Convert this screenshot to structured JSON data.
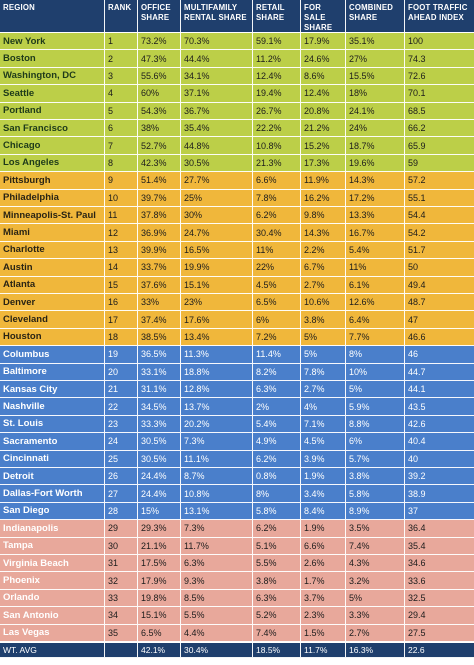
{
  "headers": [
    "REGION",
    "RANK",
    "OFFICE SHARE",
    "MULTIFAMILY RENTAL SHARE",
    "RETAIL SHARE",
    "FOR SALE SHARE",
    "COMBINED SHARE",
    "FOOT TRAFFIC AHEAD INDEX"
  ],
  "bands": {
    "green": "#bccf48",
    "yellow": "#f0b73b",
    "blue": "#4a7fcb",
    "pink": "#e8a89b",
    "header": "#1f3f6d"
  },
  "rows": [
    {
      "region": "New York",
      "rank": "1",
      "office": "73.2%",
      "multifamily": "70.3%",
      "retail": "59.1%",
      "for_sale": "17.9%",
      "combined": "35.1%",
      "foot_traffic": "100",
      "band": "green"
    },
    {
      "region": "Boston",
      "rank": "2",
      "office": "47.3%",
      "multifamily": "44.4%",
      "retail": "11.2%",
      "for_sale": "24.6%",
      "combined": "27%",
      "foot_traffic": "74.3",
      "band": "green"
    },
    {
      "region": "Washington, DC",
      "rank": "3",
      "office": "55.6%",
      "multifamily": "34.1%",
      "retail": "12.4%",
      "for_sale": "8.6%",
      "combined": "15.5%",
      "foot_traffic": "72.6",
      "band": "green"
    },
    {
      "region": "Seattle",
      "rank": "4",
      "office": "60%",
      "multifamily": "37.1%",
      "retail": "19.4%",
      "for_sale": "12.4%",
      "combined": "18%",
      "foot_traffic": "70.1",
      "band": "green"
    },
    {
      "region": "Portland",
      "rank": "5",
      "office": "54.3%",
      "multifamily": "36.7%",
      "retail": "26.7%",
      "for_sale": "20.8%",
      "combined": "24.1%",
      "foot_traffic": "68.5",
      "band": "green"
    },
    {
      "region": "San Francisco",
      "rank": "6",
      "office": "38%",
      "multifamily": "35.4%",
      "retail": "22.2%",
      "for_sale": "21.2%",
      "combined": "24%",
      "foot_traffic": "66.2",
      "band": "green"
    },
    {
      "region": "Chicago",
      "rank": "7",
      "office": "52.7%",
      "multifamily": "44.8%",
      "retail": "10.8%",
      "for_sale": "15.2%",
      "combined": "18.7%",
      "foot_traffic": "65.9",
      "band": "green"
    },
    {
      "region": "Los Angeles",
      "rank": "8",
      "office": "42.3%",
      "multifamily": "30.5%",
      "retail": "21.3%",
      "for_sale": "17.3%",
      "combined": "19.6%",
      "foot_traffic": "59",
      "band": "green"
    },
    {
      "region": "Pittsburgh",
      "rank": "9",
      "office": "51.4%",
      "multifamily": "27.7%",
      "retail": "6.6%",
      "for_sale": "11.9%",
      "combined": "14.3%",
      "foot_traffic": "57.2",
      "band": "yellow"
    },
    {
      "region": "Philadelphia",
      "rank": "10",
      "office": "39.7%",
      "multifamily": "25%",
      "retail": "7.8%",
      "for_sale": "16.2%",
      "combined": "17.2%",
      "foot_traffic": "55.1",
      "band": "yellow"
    },
    {
      "region": "Minneapolis-St. Paul",
      "rank": "11",
      "office": "37.8%",
      "multifamily": "30%",
      "retail": "6.2%",
      "for_sale": "9.8%",
      "combined": "13.3%",
      "foot_traffic": "54.4",
      "band": "yellow"
    },
    {
      "region": "Miami",
      "rank": "12",
      "office": "36.9%",
      "multifamily": "24.7%",
      "retail": "30.4%",
      "for_sale": "14.3%",
      "combined": "16.7%",
      "foot_traffic": "54.2",
      "band": "yellow"
    },
    {
      "region": "Charlotte",
      "rank": "13",
      "office": "39.9%",
      "multifamily": "16.5%",
      "retail": "11%",
      "for_sale": "2.2%",
      "combined": "5.4%",
      "foot_traffic": "51.7",
      "band": "yellow"
    },
    {
      "region": "Austin",
      "rank": "14",
      "office": "33.7%",
      "multifamily": "19.9%",
      "retail": "22%",
      "for_sale": "6.7%",
      "combined": "11%",
      "foot_traffic": "50",
      "band": "yellow"
    },
    {
      "region": "Atlanta",
      "rank": "15",
      "office": "37.6%",
      "multifamily": "15.1%",
      "retail": "4.5%",
      "for_sale": "2.7%",
      "combined": "6.1%",
      "foot_traffic": "49.4",
      "band": "yellow"
    },
    {
      "region": "Denver",
      "rank": "16",
      "office": "33%",
      "multifamily": "23%",
      "retail": "6.5%",
      "for_sale": "10.6%",
      "combined": "12.6%",
      "foot_traffic": "48.7",
      "band": "yellow"
    },
    {
      "region": "Cleveland",
      "rank": "17",
      "office": "37.4%",
      "multifamily": "17.6%",
      "retail": "6%",
      "for_sale": "3.8%",
      "combined": "6.4%",
      "foot_traffic": "47",
      "band": "yellow"
    },
    {
      "region": "Houston",
      "rank": "18",
      "office": "38.5%",
      "multifamily": "13.4%",
      "retail": "7.2%",
      "for_sale": "5%",
      "combined": "7.7%",
      "foot_traffic": "46.6",
      "band": "yellow"
    },
    {
      "region": "Columbus",
      "rank": "19",
      "office": "36.5%",
      "multifamily": "11.3%",
      "retail": "11.4%",
      "for_sale": "5%",
      "combined": "8%",
      "foot_traffic": "46",
      "band": "blue"
    },
    {
      "region": "Baltimore",
      "rank": "20",
      "office": "33.1%",
      "multifamily": "18.8%",
      "retail": "8.2%",
      "for_sale": "7.8%",
      "combined": "10%",
      "foot_traffic": "44.7",
      "band": "blue"
    },
    {
      "region": "Kansas City",
      "rank": "21",
      "office": "31.1%",
      "multifamily": "12.8%",
      "retail": "6.3%",
      "for_sale": "2.7%",
      "combined": "5%",
      "foot_traffic": "44.1",
      "band": "blue"
    },
    {
      "region": "Nashville",
      "rank": "22",
      "office": "34.5%",
      "multifamily": "13.7%",
      "retail": "2%",
      "for_sale": "4%",
      "combined": "5.9%",
      "foot_traffic": "43.5",
      "band": "blue"
    },
    {
      "region": "St. Louis",
      "rank": "23",
      "office": "33.3%",
      "multifamily": "20.2%",
      "retail": "5.4%",
      "for_sale": "7.1%",
      "combined": "8.8%",
      "foot_traffic": "42.6",
      "band": "blue"
    },
    {
      "region": "Sacramento",
      "rank": "24",
      "office": "30.5%",
      "multifamily": "7.3%",
      "retail": "4.9%",
      "for_sale": "4.5%",
      "combined": "6%",
      "foot_traffic": "40.4",
      "band": "blue"
    },
    {
      "region": "Cincinnati",
      "rank": "25",
      "office": "30.5%",
      "multifamily": "11.1%",
      "retail": "6.2%",
      "for_sale": "3.9%",
      "combined": "5.7%",
      "foot_traffic": "40",
      "band": "blue"
    },
    {
      "region": "Detroit",
      "rank": "26",
      "office": "24.4%",
      "multifamily": "8.7%",
      "retail": "0.8%",
      "for_sale": "1.9%",
      "combined": "3.8%",
      "foot_traffic": "39.2",
      "band": "blue"
    },
    {
      "region": "Dallas-Fort Worth",
      "rank": "27",
      "office": "24.4%",
      "multifamily": "10.8%",
      "retail": "8%",
      "for_sale": "3.4%",
      "combined": "5.8%",
      "foot_traffic": "38.9",
      "band": "blue"
    },
    {
      "region": "San Diego",
      "rank": "28",
      "office": "15%",
      "multifamily": "13.1%",
      "retail": "5.8%",
      "for_sale": "8.4%",
      "combined": "8.9%",
      "foot_traffic": "37",
      "band": "blue"
    },
    {
      "region": "Indianapolis",
      "rank": "29",
      "office": "29.3%",
      "multifamily": "7.3%",
      "retail": "6.2%",
      "for_sale": "1.9%",
      "combined": "3.5%",
      "foot_traffic": "36.4",
      "band": "pink"
    },
    {
      "region": "Tampa",
      "rank": "30",
      "office": "21.1%",
      "multifamily": "11.7%",
      "retail": "5.1%",
      "for_sale": "6.6%",
      "combined": "7.4%",
      "foot_traffic": "35.4",
      "band": "pink"
    },
    {
      "region": "Virginia Beach",
      "rank": "31",
      "office": "17.5%",
      "multifamily": "6.3%",
      "retail": "5.5%",
      "for_sale": "2.6%",
      "combined": "4.3%",
      "foot_traffic": "34.6",
      "band": "pink"
    },
    {
      "region": "Phoenix",
      "rank": "32",
      "office": "17.9%",
      "multifamily": "9.3%",
      "retail": "3.8%",
      "for_sale": "1.7%",
      "combined": "3.2%",
      "foot_traffic": "33.6",
      "band": "pink"
    },
    {
      "region": "Orlando",
      "rank": "33",
      "office": "19.8%",
      "multifamily": "8.5%",
      "retail": "6.3%",
      "for_sale": "3.7%",
      "combined": "5%",
      "foot_traffic": "32.5",
      "band": "pink"
    },
    {
      "region": "San Antonio",
      "rank": "34",
      "office": "15.1%",
      "multifamily": "5.5%",
      "retail": "5.2%",
      "for_sale": "2.3%",
      "combined": "3.3%",
      "foot_traffic": "29.4",
      "band": "pink"
    },
    {
      "region": "Las Vegas",
      "rank": "35",
      "office": "6.5%",
      "multifamily": "4.4%",
      "retail": "7.4%",
      "for_sale": "1.5%",
      "combined": "2.7%",
      "foot_traffic": "27.5",
      "band": "pink"
    }
  ],
  "footer": {
    "region": "WT. AVG",
    "rank": "",
    "office": "42.1%",
    "multifamily": "30.4%",
    "retail": "18.5%",
    "for_sale": "11.7%",
    "combined": "16.3%",
    "foot_traffic": "22.6"
  }
}
